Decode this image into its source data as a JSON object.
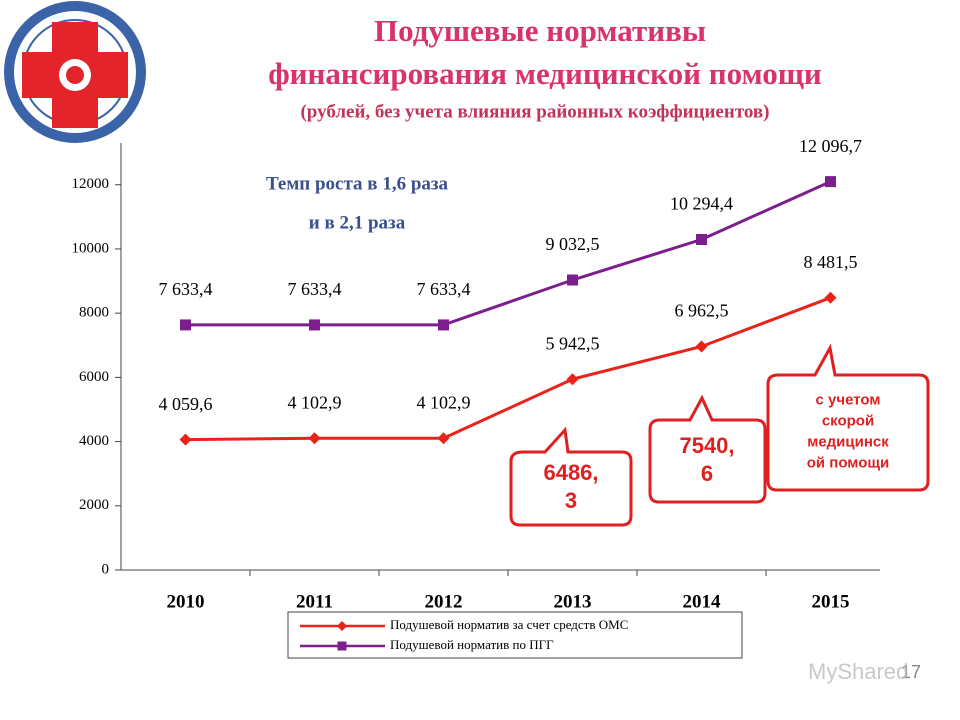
{
  "chart_data": {
    "type": "line",
    "title": [
      "Подушевые нормативы",
      "финансирования медицинской помощи"
    ],
    "subtitle": "(рублей, без учета влияния районных коэффициентов)",
    "categories": [
      "2010",
      "2011",
      "2012",
      "2013",
      "2014",
      "2015"
    ],
    "series": [
      {
        "name": "Подушевой норматив за счет средств ОМС",
        "color": "#e8231a",
        "marker": "diamond",
        "values": [
          4059.6,
          4102.9,
          4102.9,
          5942.5,
          6962.5,
          8481.5
        ],
        "value_labels": [
          "4 059,6",
          "4 102,9",
          "4 102,9",
          "5 942,5",
          "6 962,5",
          "8 481,5"
        ]
      },
      {
        "name": "Подушевой норматив по ПГГ",
        "color": "#7b1f8c",
        "marker": "square",
        "values": [
          7633.4,
          7633.4,
          7633.4,
          9032.5,
          10294.4,
          12096.7
        ],
        "value_labels": [
          "7 633,4",
          "7 633,4",
          "7 633,4",
          "9 032,5",
          "10 294,4",
          "12 096,7"
        ]
      }
    ],
    "ylim": [
      0,
      13300
    ],
    "yticks": [
      0,
      2000,
      4000,
      6000,
      8000,
      10000,
      12000
    ],
    "annotations": [
      "Темп роста в 1,6 раза",
      "и в 2,1 раза"
    ],
    "callouts": [
      [
        "6486,",
        "3"
      ],
      [
        "7540,",
        "6"
      ],
      [
        "с учетом",
        "скорой",
        "медицинск",
        "ой помощи"
      ]
    ],
    "legend": "bottom",
    "page_number": "17",
    "watermark": "MyShared"
  }
}
